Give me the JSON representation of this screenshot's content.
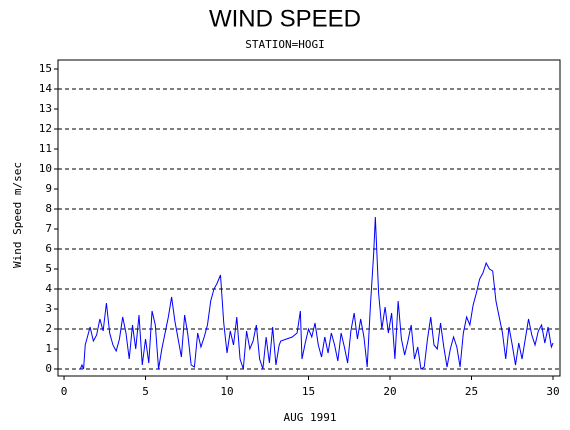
{
  "chart_data": {
    "type": "line",
    "title": "WIND SPEED",
    "subtitle": "STATION=HOGI",
    "x_label": "AUG 1991",
    "y_label": "Wind Speed m/sec",
    "xlim": [
      -0.37,
      30.43
    ],
    "ylim": [
      -0.35,
      15.45
    ],
    "xticks": [
      0,
      5,
      10,
      15,
      20,
      25,
      30
    ],
    "yticks": [
      0,
      1,
      2,
      3,
      4,
      5,
      6,
      7,
      8,
      9,
      10,
      11,
      12,
      13,
      14,
      15
    ],
    "grid_lines": [
      0,
      2,
      4,
      6,
      8,
      10,
      12,
      14
    ],
    "series": [
      {
        "color": "#0000ff",
        "x": [
          1.0,
          1.1,
          1.2,
          1.3,
          1.5,
          1.6,
          1.8,
          2.0,
          2.2,
          2.4,
          2.6,
          2.8,
          3.0,
          3.2,
          3.4,
          3.6,
          3.8,
          4.0,
          4.2,
          4.4,
          4.6,
          4.8,
          5.0,
          5.2,
          5.4,
          5.6,
          5.8,
          6.0,
          6.2,
          6.4,
          6.6,
          6.8,
          7.0,
          7.2,
          7.4,
          7.6,
          7.8,
          8.0,
          8.2,
          8.4,
          8.6,
          8.8,
          9.0,
          9.2,
          9.4,
          9.6,
          9.8,
          10.0,
          10.2,
          10.4,
          10.6,
          10.8,
          11.0,
          11.2,
          11.4,
          11.6,
          11.8,
          12.0,
          12.2,
          12.4,
          12.6,
          12.8,
          13.0,
          13.2,
          13.3,
          14.0,
          14.3,
          14.5,
          14.6,
          14.8,
          15.0,
          15.2,
          15.4,
          15.6,
          15.8,
          16.0,
          16.2,
          16.4,
          16.6,
          16.8,
          17.0,
          17.2,
          17.4,
          17.6,
          17.8,
          18.0,
          18.2,
          18.4,
          18.6,
          18.8,
          19.0,
          19.1,
          19.3,
          19.5,
          19.7,
          19.9,
          20.1,
          20.3,
          20.5,
          20.7,
          20.9,
          21.1,
          21.3,
          21.5,
          21.7,
          21.9,
          22.1,
          22.3,
          22.5,
          22.7,
          22.9,
          23.1,
          23.3,
          23.5,
          23.7,
          23.9,
          24.1,
          24.3,
          24.5,
          24.7,
          24.9,
          25.1,
          25.3,
          25.5,
          25.7,
          25.9,
          26.1,
          26.3,
          26.5,
          26.7,
          26.9,
          27.1,
          27.3,
          27.5,
          27.7,
          27.9,
          28.1,
          28.3,
          28.5,
          28.7,
          28.9,
          29.1,
          29.3,
          29.5,
          29.7,
          29.9,
          30.0
        ],
        "values": [
          0,
          0.2,
          0,
          1.2,
          1.8,
          2.1,
          1.4,
          1.7,
          2.5,
          1.9,
          3.3,
          1.8,
          1.2,
          0.9,
          1.5,
          2.6,
          1.8,
          0.5,
          2.2,
          1.0,
          2.7,
          0.2,
          1.5,
          0.3,
          2.9,
          2.2,
          0,
          1.0,
          1.8,
          2.6,
          3.6,
          2.4,
          1.5,
          0.6,
          2.7,
          1.7,
          0.2,
          0.1,
          1.8,
          1.1,
          1.6,
          2.2,
          3.4,
          4.0,
          4.3,
          4.7,
          2.3,
          0.8,
          1.9,
          1.2,
          2.6,
          0.5,
          0,
          1.9,
          1.0,
          1.4,
          2.2,
          0.5,
          0,
          1.6,
          0.3,
          2.1,
          0.2,
          1.2,
          1.4,
          1.6,
          1.8,
          2.9,
          0.5,
          1.3,
          2.0,
          1.6,
          2.3,
          1.2,
          0.6,
          1.6,
          0.8,
          1.8,
          1.2,
          0.4,
          1.8,
          1.1,
          0.3,
          1.9,
          2.8,
          1.5,
          2.5,
          1.6,
          0.1,
          3.2,
          5.8,
          7.6,
          3.8,
          2.0,
          3.1,
          1.8,
          2.8,
          0.5,
          3.4,
          1.5,
          0.7,
          1.4,
          2.2,
          0.5,
          1.1,
          0,
          0.1,
          1.5,
          2.6,
          1.2,
          1.0,
          2.3,
          1.1,
          0.1,
          1.0,
          1.6,
          1.1,
          0.1,
          1.8,
          2.6,
          2.2,
          3.2,
          3.8,
          4.5,
          4.8,
          5.3,
          5.0,
          4.9,
          3.4,
          2.6,
          1.8,
          0.5,
          2.1,
          1.2,
          0.2,
          1.3,
          0.5,
          1.5,
          2.5,
          1.7,
          1.2,
          1.9,
          2.2,
          1.3,
          2.1,
          1.1,
          1.3
        ]
      }
    ]
  }
}
